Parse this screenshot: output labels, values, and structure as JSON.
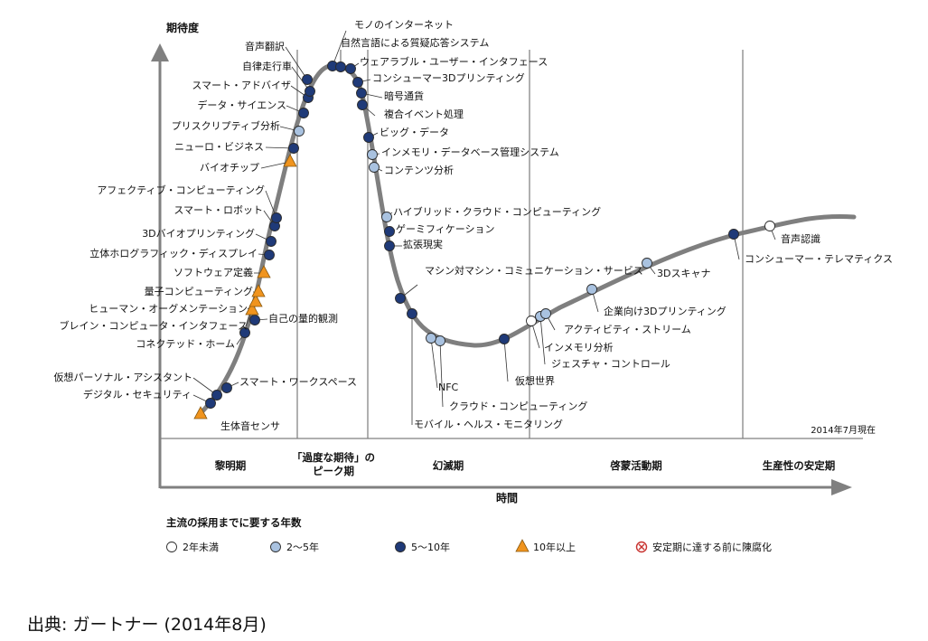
{
  "chart_data": {
    "type": "hype_cycle",
    "y_axis_label": "期待度",
    "x_axis_label": "時間",
    "as_of": "2014年7月現在",
    "phases": [
      "黎明期",
      "「過度な期待」の",
      "ピーク期",
      "幻滅期",
      "啓蒙活動期",
      "生産性の安定期"
    ],
    "legend": {
      "title": "主流の採用までに要する年数",
      "items": [
        {
          "key": "lt2",
          "label": "2年未満"
        },
        {
          "key": "2to5",
          "label": "2〜5年"
        },
        {
          "key": "5to10",
          "label": "5〜10年"
        },
        {
          "key": "gt10",
          "label": "10年以上"
        },
        {
          "key": "obsolete",
          "label": "安定期に達する前に陳腐化"
        }
      ]
    },
    "colors": {
      "lt2": "#ffffff",
      "2to5": "#a9c2e0",
      "5to10": "#1f3a78",
      "gt10": "#f0941e",
      "obsolete": "#c8322f",
      "curve": "#7f7f7f",
      "phase_line": "#b0b0b0"
    },
    "technologies": [
      {
        "name": "生体音センサ",
        "category": "gt10",
        "phase": "黎明期"
      },
      {
        "name": "デジタル・セキュリティ",
        "category": "5to10",
        "phase": "黎明期"
      },
      {
        "name": "仮想パーソナル・アシスタント",
        "category": "5to10",
        "phase": "黎明期"
      },
      {
        "name": "スマート・ワークスペース",
        "category": "5to10",
        "phase": "黎明期"
      },
      {
        "name": "コネクテッド・ホーム",
        "category": "5to10",
        "phase": "黎明期"
      },
      {
        "name": "自己の量的観測",
        "category": "5to10",
        "phase": "黎明期"
      },
      {
        "name": "ブレイン・コンピュータ・インタフェース",
        "category": "gt10",
        "phase": "黎明期"
      },
      {
        "name": "ヒューマン・オーグメンテーション",
        "category": "gt10",
        "phase": "黎明期"
      },
      {
        "name": "量子コンピューティング",
        "category": "gt10",
        "phase": "黎明期"
      },
      {
        "name": "ソフトウェア定義",
        "category": "gt10",
        "phase": "黎明期"
      },
      {
        "name": "立体ホログラフィック・ディスプレイ",
        "category": "5to10",
        "phase": "黎明期"
      },
      {
        "name": "3Dバイオプリンティング",
        "category": "5to10",
        "phase": "黎明期"
      },
      {
        "name": "スマート・ロボット",
        "category": "5to10",
        "phase": "黎明期"
      },
      {
        "name": "アフェクティブ・コンピューティング",
        "category": "5to10",
        "phase": "黎明期"
      },
      {
        "name": "バイオチップ",
        "category": "gt10",
        "phase": "黎明期"
      },
      {
        "name": "ニューロ・ビジネス",
        "category": "5to10",
        "phase": "黎明期"
      },
      {
        "name": "プリスクリプティブ分析",
        "category": "2to5",
        "phase": "黎明期"
      },
      {
        "name": "データ・サイエンス",
        "category": "5to10",
        "phase": "「過度な期待」のピーク期"
      },
      {
        "name": "スマート・アドバイザ",
        "category": "5to10",
        "phase": "「過度な期待」のピーク期"
      },
      {
        "name": "自律走行車",
        "category": "5to10",
        "phase": "「過度な期待」のピーク期"
      },
      {
        "name": "音声翻訳",
        "category": "5to10",
        "phase": "「過度な期待」のピーク期"
      },
      {
        "name": "モノのインターネット",
        "category": "5to10",
        "phase": "「過度な期待」のピーク期"
      },
      {
        "name": "自然言語による質疑応答システム",
        "category": "5to10",
        "phase": "「過度な期待」のピーク期"
      },
      {
        "name": "ウェアラブル・ユーザー・インタフェース",
        "category": "5to10",
        "phase": "「過度な期待」のピーク期"
      },
      {
        "name": "コンシューマー3Dプリンティング",
        "category": "5to10",
        "phase": "「過度な期待」のピーク期"
      },
      {
        "name": "暗号通貨",
        "category": "5to10",
        "phase": "「過度な期待」のピーク期"
      },
      {
        "name": "複合イベント処理",
        "category": "5to10",
        "phase": "「過度な期待」のピーク期"
      },
      {
        "name": "ビッグ・データ",
        "category": "5to10",
        "phase": "幻滅期"
      },
      {
        "name": "インメモリ・データベース管理システム",
        "category": "2to5",
        "phase": "幻滅期"
      },
      {
        "name": "コンテンツ分析",
        "category": "2to5",
        "phase": "幻滅期"
      },
      {
        "name": "ハイブリッド・クラウド・コンピューティング",
        "category": "2to5",
        "phase": "幻滅期"
      },
      {
        "name": "ゲーミフィケーション",
        "category": "5to10",
        "phase": "幻滅期"
      },
      {
        "name": "拡張現実",
        "category": "5to10",
        "phase": "幻滅期"
      },
      {
        "name": "マシン対マシン・コミュニケーション・サービス",
        "category": "5to10",
        "phase": "幻滅期"
      },
      {
        "name": "モバイル・ヘルス・モニタリング",
        "category": "5to10",
        "phase": "幻滅期"
      },
      {
        "name": "クラウド・コンピューティング",
        "category": "2to5",
        "phase": "幻滅期"
      },
      {
        "name": "NFC",
        "category": "2to5",
        "phase": "幻滅期"
      },
      {
        "name": "仮想世界",
        "category": "5to10",
        "phase": "幻滅期"
      },
      {
        "name": "ジェスチャ・コントロール",
        "category": "2to5",
        "phase": "啓蒙活動期"
      },
      {
        "name": "インメモリ分析",
        "category": "lt2",
        "phase": "啓蒙活動期"
      },
      {
        "name": "アクティビティ・ストリーム",
        "category": "2to5",
        "phase": "啓蒙活動期"
      },
      {
        "name": "企業向け3Dプリンティング",
        "category": "2to5",
        "phase": "啓蒙活動期"
      },
      {
        "name": "3Dスキャナ",
        "category": "2to5",
        "phase": "啓蒙活動期"
      },
      {
        "name": "コンシューマー・テレマティクス",
        "category": "5to10",
        "phase": "啓蒙活動期"
      },
      {
        "name": "音声認識",
        "category": "lt2",
        "phase": "生産性の安定期"
      }
    ]
  },
  "source": "出典: ガートナー (2014年8月)"
}
